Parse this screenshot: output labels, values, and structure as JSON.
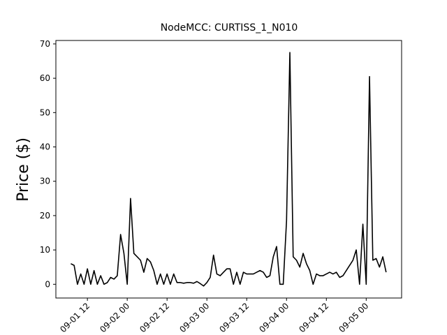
{
  "chart_data": {
    "type": "line",
    "title": "NodeMCC: CURTISS_1_N010",
    "y_label": "Price ($)",
    "x": [
      "09-01 07",
      "09-01 08",
      "09-01 09",
      "09-01 10",
      "09-01 11",
      "09-01 12",
      "09-01 13",
      "09-01 14",
      "09-01 15",
      "09-01 16",
      "09-01 17",
      "09-01 18",
      "09-01 19",
      "09-01 20",
      "09-01 21",
      "09-01 22",
      "09-01 23",
      "09-02 00",
      "09-02 01",
      "09-02 02",
      "09-02 03",
      "09-02 04",
      "09-02 05",
      "09-02 06",
      "09-02 07",
      "09-02 08",
      "09-02 09",
      "09-02 10",
      "09-02 11",
      "09-02 12",
      "09-02 13",
      "09-02 14",
      "09-02 15",
      "09-02 16",
      "09-02 17",
      "09-02 18",
      "09-02 19",
      "09-02 20",
      "09-02 21",
      "09-02 22",
      "09-02 23",
      "09-03 00",
      "09-03 01",
      "09-03 02",
      "09-03 03",
      "09-03 04",
      "09-03 05",
      "09-03 06",
      "09-03 07",
      "09-03 08",
      "09-03 09",
      "09-03 10",
      "09-03 11",
      "09-03 12",
      "09-03 13",
      "09-03 14",
      "09-03 15",
      "09-03 16",
      "09-03 17",
      "09-03 18",
      "09-03 19",
      "09-03 20",
      "09-03 21",
      "09-03 22",
      "09-03 23",
      "09-04 00",
      "09-04 01",
      "09-04 02",
      "09-04 03",
      "09-04 04",
      "09-04 05",
      "09-04 06",
      "09-04 07",
      "09-04 08",
      "09-04 09",
      "09-04 10",
      "09-04 11",
      "09-04 12",
      "09-04 13",
      "09-04 14",
      "09-04 15",
      "09-04 16",
      "09-04 17",
      "09-04 18",
      "09-04 19",
      "09-04 20",
      "09-04 21",
      "09-04 22",
      "09-04 23",
      "09-05 00",
      "09-05 01",
      "09-05 02",
      "09-05 03",
      "09-05 04",
      "09-05 05",
      "09-05 06"
    ],
    "series": [
      {
        "name": "CURTISS_1_N010",
        "color": "#000000",
        "values": [
          6,
          5.5,
          0,
          3,
          0,
          4.5,
          0,
          4,
          0,
          2.5,
          0,
          0.5,
          2,
          1.5,
          2.5,
          14.5,
          9,
          0,
          25,
          9,
          8,
          7,
          3.5,
          7.5,
          6.5,
          4,
          0,
          3,
          0,
          3,
          0,
          3,
          0.5,
          0.5,
          0.3,
          0.5,
          0.5,
          0.3,
          0.8,
          0.2,
          -0.5,
          0.5,
          2,
          8.5,
          3,
          2.5,
          3.5,
          4.5,
          4.5,
          0,
          3.5,
          0,
          3.5,
          3,
          3,
          3,
          3.5,
          4,
          3.5,
          2,
          2.5,
          8,
          11,
          0,
          0,
          18.5,
          67.5,
          8,
          7,
          5,
          9,
          6,
          4,
          0,
          3,
          2.5,
          2.5,
          3,
          3.5,
          3,
          3.5,
          2,
          2.5,
          4,
          5.5,
          7,
          10,
          0,
          17.5,
          0,
          60.5,
          7,
          7.5,
          5,
          8,
          3.5
        ]
      }
    ],
    "xlim": [
      "09-01 02:30",
      "09-05 10:40"
    ],
    "xticks": [
      "09-01 12",
      "09-02 00",
      "09-02 12",
      "09-03 00",
      "09-03 12",
      "09-04 00",
      "09-04 12",
      "09-05 00"
    ],
    "ylim": [
      -4,
      71
    ],
    "yticks": [
      0,
      10,
      20,
      30,
      40,
      50,
      60,
      70
    ]
  }
}
